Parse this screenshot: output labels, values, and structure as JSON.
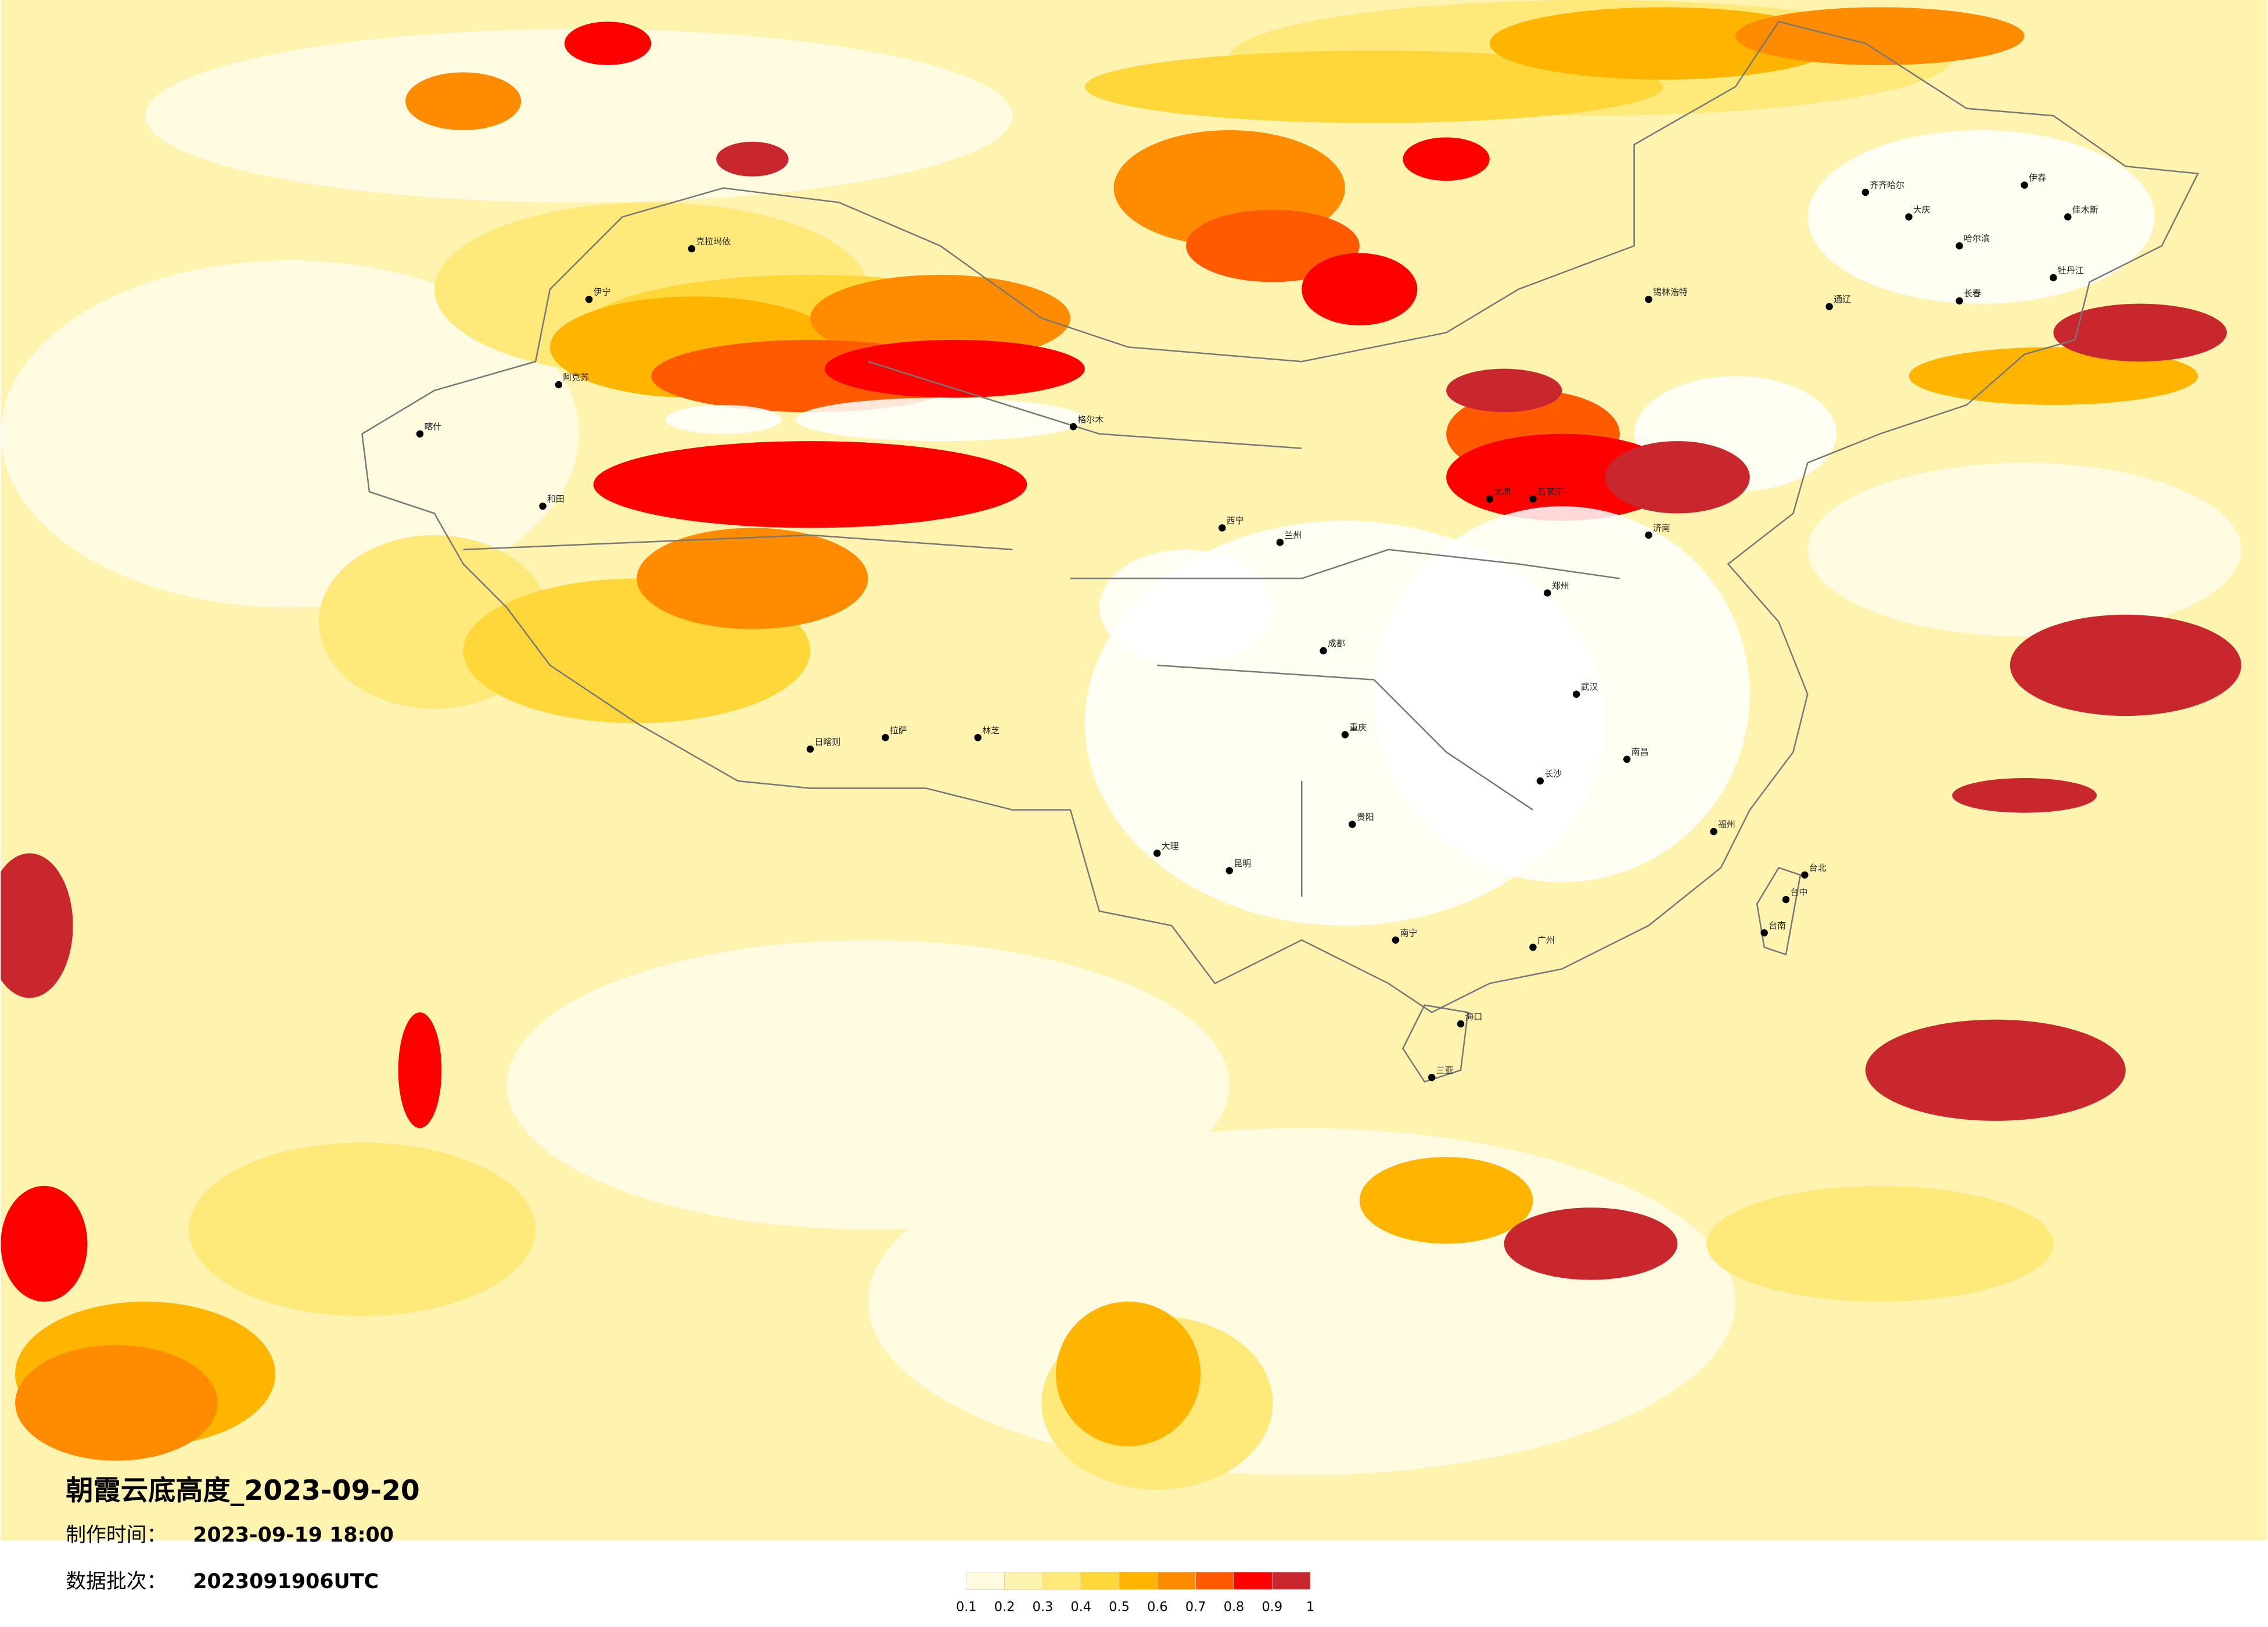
{
  "header": {
    "title": "朝霞云底高度_2023-09-20",
    "made_label": "制作时间：",
    "made_time": "2023-09-19 18:00",
    "batch_label": "数据批次：",
    "batch": "2023091906UTC"
  },
  "legend": {
    "colors": [
      "#fffbe0",
      "#fff3b0",
      "#ffe97a",
      "#ffd73a",
      "#ffb400",
      "#ff8c00",
      "#ff5a00",
      "#ff0000",
      "#c8282d"
    ],
    "ticks": [
      0.1,
      0.2,
      0.3,
      0.4,
      0.5,
      0.6,
      0.7,
      0.8,
      0.9,
      1
    ]
  },
  "cities": [
    "克拉玛依",
    "伊宁",
    "阿克苏",
    "喀什",
    "和田",
    "锡林浩特",
    "齐齐哈尔",
    "大庆",
    "哈尔滨",
    "伊春",
    "佳木斯",
    "牡丹江",
    "长春",
    "通辽",
    "格尔木",
    "拉萨",
    "日喀则",
    "林芝",
    "昆明",
    "南宁",
    "海口",
    "三亚",
    "台北",
    "台中",
    "台南",
    "大理",
    "西宁",
    "兰州",
    "成都",
    "重庆",
    "贵阳",
    "长沙",
    "武汉",
    "南昌",
    "福州",
    "广州",
    "郑州",
    "济南",
    "太原",
    "石家庄"
  ]
}
